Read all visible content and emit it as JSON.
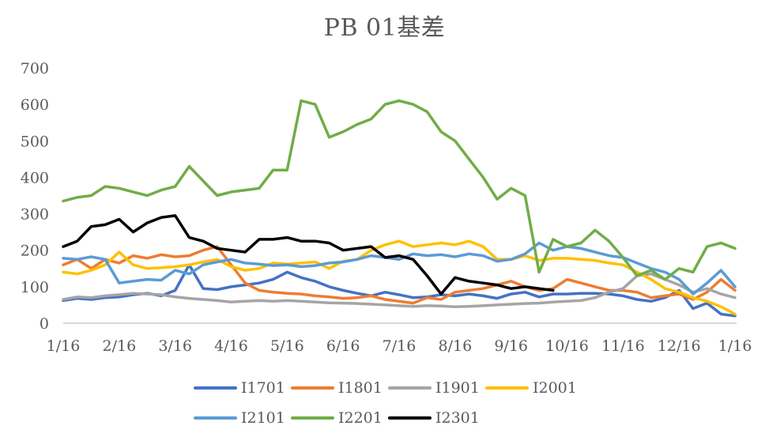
{
  "chart_data": {
    "type": "line",
    "title": "PB 01基差",
    "xlabel": "",
    "ylabel": "",
    "ylim": [
      0,
      700
    ],
    "yticks": [
      0,
      100,
      200,
      300,
      400,
      500,
      600,
      700
    ],
    "x_tick_labels": [
      "1/16",
      "2/16",
      "3/16",
      "4/16",
      "5/16",
      "6/16",
      "7/16",
      "8/16",
      "9/16",
      "10/16",
      "11/16",
      "12/16",
      "1/16"
    ],
    "grid": false,
    "legend_position": "bottom",
    "x_note": "x is month offset from 1/16 (0 = 1/16, 12 = following 1/16); values approximate, read from chart",
    "series": [
      {
        "name": "I1701",
        "color": "#4472C4",
        "x": [
          0,
          0.25,
          0.5,
          0.75,
          1,
          1.25,
          1.5,
          1.75,
          2,
          2.25,
          2.5,
          2.75,
          3,
          3.25,
          3.5,
          3.75,
          4,
          4.25,
          4.5,
          4.75,
          5,
          5.25,
          5.5,
          5.75,
          6,
          6.25,
          6.5,
          6.75,
          7,
          7.25,
          7.5,
          7.75,
          8,
          8.25,
          8.5,
          8.75,
          9,
          9.25,
          9.5,
          9.75,
          10,
          10.25,
          10.5,
          10.75,
          11,
          11.25,
          11.5,
          11.75,
          12
        ],
        "values": [
          62,
          68,
          65,
          70,
          72,
          78,
          82,
          75,
          90,
          160,
          95,
          92,
          100,
          105,
          110,
          120,
          140,
          125,
          115,
          100,
          90,
          82,
          75,
          85,
          78,
          70,
          72,
          78,
          75,
          80,
          75,
          68,
          80,
          85,
          72,
          80,
          80,
          82,
          82,
          80,
          75,
          65,
          60,
          70,
          90,
          40,
          55,
          25,
          20
        ]
      },
      {
        "name": "I1801",
        "color": "#ED7D31",
        "x": [
          0,
          0.25,
          0.5,
          0.75,
          1,
          1.25,
          1.5,
          1.75,
          2,
          2.25,
          2.5,
          2.75,
          3,
          3.25,
          3.5,
          3.75,
          4,
          4.25,
          4.5,
          4.75,
          5,
          5.25,
          5.5,
          5.75,
          6,
          6.25,
          6.5,
          6.75,
          7,
          7.25,
          7.5,
          7.75,
          8,
          8.25,
          8.5,
          8.75,
          9,
          9.25,
          9.5,
          9.75,
          10,
          10.25,
          10.5,
          10.75,
          11,
          11.25,
          11.5,
          11.75,
          12
        ],
        "values": [
          160,
          175,
          150,
          175,
          165,
          185,
          178,
          188,
          182,
          185,
          200,
          210,
          160,
          110,
          90,
          85,
          82,
          80,
          75,
          72,
          68,
          70,
          75,
          65,
          60,
          55,
          70,
          65,
          85,
          90,
          95,
          105,
          115,
          100,
          90,
          95,
          120,
          110,
          100,
          90,
          90,
          85,
          70,
          75,
          80,
          65,
          85,
          120,
          90
        ]
      },
      {
        "name": "I1901",
        "color": "#A5A5A5",
        "x": [
          0,
          0.25,
          0.5,
          0.75,
          1,
          1.25,
          1.5,
          1.75,
          2,
          2.25,
          2.5,
          2.75,
          3,
          3.25,
          3.5,
          3.75,
          4,
          4.25,
          4.5,
          4.75,
          5,
          5.25,
          5.5,
          5.75,
          6,
          6.25,
          6.5,
          6.75,
          7,
          7.25,
          7.5,
          7.75,
          8,
          8.25,
          8.5,
          8.75,
          9,
          9.25,
          9.5,
          9.75,
          10,
          10.25,
          10.5,
          10.75,
          11,
          11.25,
          11.5,
          11.75,
          12
        ],
        "values": [
          65,
          72,
          70,
          75,
          78,
          82,
          80,
          78,
          72,
          68,
          65,
          62,
          58,
          60,
          62,
          60,
          62,
          60,
          58,
          56,
          55,
          54,
          52,
          50,
          48,
          46,
          48,
          47,
          45,
          46,
          48,
          50,
          52,
          54,
          55,
          58,
          60,
          62,
          70,
          85,
          95,
          130,
          135,
          120,
          105,
          85,
          95,
          80,
          70
        ]
      },
      {
        "name": "I2001",
        "color": "#FFC000",
        "x": [
          0,
          0.25,
          0.5,
          0.75,
          1,
          1.25,
          1.5,
          1.75,
          2,
          2.25,
          2.5,
          2.75,
          3,
          3.25,
          3.5,
          3.75,
          4,
          4.25,
          4.5,
          4.75,
          5,
          5.25,
          5.5,
          5.75,
          6,
          6.25,
          6.5,
          6.75,
          7,
          7.25,
          7.5,
          7.75,
          8,
          8.25,
          8.5,
          8.75,
          9,
          9.25,
          9.5,
          9.75,
          10,
          10.25,
          10.5,
          10.75,
          11,
          11.25,
          11.5,
          11.75,
          12
        ],
        "values": [
          140,
          135,
          145,
          160,
          195,
          160,
          150,
          152,
          155,
          160,
          168,
          175,
          155,
          145,
          150,
          165,
          162,
          165,
          168,
          150,
          170,
          175,
          200,
          215,
          225,
          210,
          215,
          220,
          215,
          225,
          210,
          175,
          175,
          185,
          172,
          178,
          178,
          175,
          172,
          165,
          160,
          140,
          120,
          95,
          85,
          70,
          60,
          45,
          25
        ]
      },
      {
        "name": "I2101",
        "color": "#5B9BD5",
        "x": [
          0,
          0.25,
          0.5,
          0.75,
          1,
          1.25,
          1.5,
          1.75,
          2,
          2.25,
          2.5,
          2.75,
          3,
          3.25,
          3.5,
          3.75,
          4,
          4.25,
          4.5,
          4.75,
          5,
          5.25,
          5.5,
          5.75,
          6,
          6.25,
          6.5,
          6.75,
          7,
          7.25,
          7.5,
          7.75,
          8,
          8.25,
          8.5,
          8.75,
          9,
          9.25,
          9.5,
          9.75,
          10,
          10.25,
          10.5,
          10.75,
          11,
          11.25,
          11.5,
          11.75,
          12
        ],
        "values": [
          178,
          175,
          182,
          175,
          110,
          115,
          120,
          118,
          145,
          135,
          160,
          168,
          175,
          165,
          162,
          158,
          160,
          155,
          158,
          165,
          168,
          175,
          185,
          180,
          175,
          190,
          185,
          188,
          182,
          190,
          185,
          170,
          175,
          190,
          220,
          200,
          210,
          205,
          195,
          185,
          180,
          165,
          150,
          140,
          120,
          80,
          110,
          145,
          100
        ]
      },
      {
        "name": "I2201",
        "color": "#70AD47",
        "x": [
          0,
          0.25,
          0.5,
          0.75,
          1,
          1.25,
          1.5,
          1.75,
          2,
          2.25,
          2.5,
          2.75,
          3,
          3.25,
          3.5,
          3.75,
          4,
          4.25,
          4.5,
          4.75,
          5,
          5.25,
          5.5,
          5.75,
          6,
          6.25,
          6.5,
          6.75,
          7,
          7.25,
          7.5,
          7.75,
          8,
          8.25,
          8.5,
          8.75,
          9,
          9.25,
          9.5,
          9.75,
          10,
          10.25,
          10.5,
          10.75,
          11,
          11.25,
          11.5,
          11.75,
          12
        ],
        "values": [
          335,
          345,
          350,
          375,
          370,
          360,
          350,
          365,
          375,
          430,
          390,
          350,
          360,
          365,
          370,
          420,
          420,
          610,
          600,
          510,
          525,
          545,
          560,
          600,
          610,
          600,
          580,
          525,
          500,
          450,
          400,
          340,
          370,
          350,
          140,
          230,
          210,
          220,
          255,
          225,
          180,
          130,
          145,
          120,
          150,
          140,
          210,
          220,
          205
        ]
      },
      {
        "name": "I2301",
        "color": "#000000",
        "x": [
          0,
          0.25,
          0.5,
          0.75,
          1,
          1.25,
          1.5,
          1.75,
          2,
          2.25,
          2.5,
          2.75,
          3,
          3.25,
          3.5,
          3.75,
          4,
          4.25,
          4.5,
          4.75,
          5,
          5.25,
          5.5,
          5.75,
          6,
          6.25,
          6.5,
          6.75,
          7,
          7.25,
          7.5,
          7.75,
          8,
          8.25,
          8.5,
          8.75
        ],
        "values": [
          210,
          225,
          265,
          270,
          285,
          250,
          275,
          290,
          295,
          235,
          225,
          205,
          200,
          195,
          230,
          230,
          235,
          225,
          225,
          220,
          200,
          205,
          210,
          180,
          185,
          175,
          130,
          80,
          125,
          115,
          110,
          105,
          95,
          100,
          95,
          90
        ]
      }
    ]
  },
  "legend": {
    "rows": [
      [
        {
          "label": "I1701",
          "color": "#4472C4"
        },
        {
          "label": "I1801",
          "color": "#ED7D31"
        },
        {
          "label": "I1901",
          "color": "#A5A5A5"
        },
        {
          "label": "I2001",
          "color": "#FFC000"
        }
      ],
      [
        {
          "label": "I2101",
          "color": "#5B9BD5"
        },
        {
          "label": "I2201",
          "color": "#70AD47"
        },
        {
          "label": "I2301",
          "color": "#000000"
        }
      ]
    ]
  }
}
